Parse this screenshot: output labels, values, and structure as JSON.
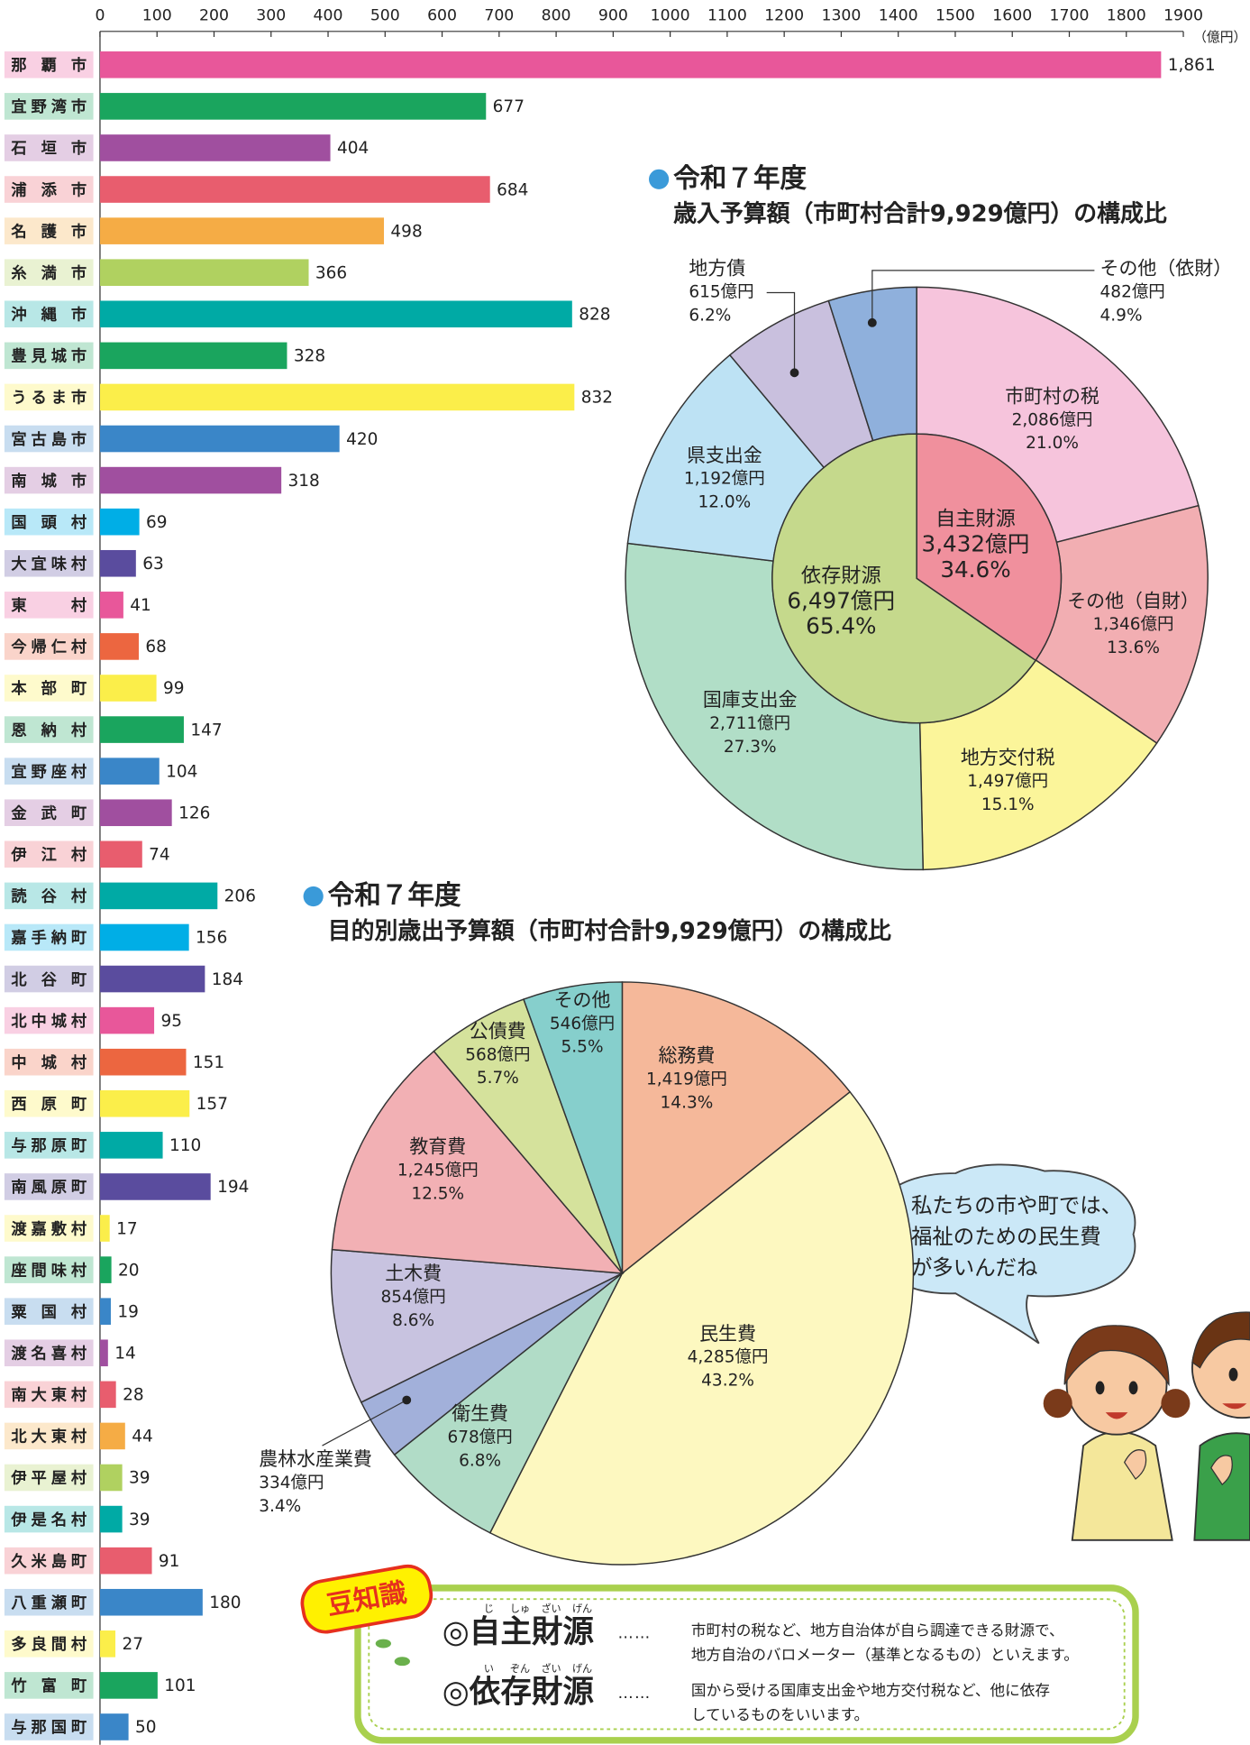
{
  "chart_data": [
    {
      "type": "bar",
      "orientation": "horizontal",
      "categories": [
        "那覇市",
        "宜野湾市",
        "石垣市",
        "浦添市",
        "名護市",
        "糸満市",
        "沖縄市",
        "豊見城市",
        "うるま市",
        "宮古島市",
        "南城市",
        "国頭村",
        "大宜味村",
        "東村",
        "今帰仁村",
        "本部町",
        "恩納村",
        "宜野座村",
        "金武町",
        "伊江村",
        "読谷村",
        "嘉手納町",
        "北谷町",
        "北中城村",
        "中城村",
        "西原町",
        "与那原町",
        "南風原町",
        "渡嘉敷村",
        "座間味村",
        "粟国村",
        "渡名喜村",
        "南大東村",
        "北大東村",
        "伊平屋村",
        "伊是名村",
        "久米島町",
        "八重瀬町",
        "多良間村",
        "竹富町",
        "与那国町"
      ],
      "values": [
        1861,
        677,
        404,
        684,
        498,
        366,
        828,
        328,
        832,
        420,
        318,
        69,
        63,
        41,
        68,
        99,
        147,
        104,
        126,
        74,
        206,
        156,
        184,
        95,
        151,
        157,
        110,
        194,
        17,
        20,
        19,
        14,
        28,
        44,
        39,
        39,
        91,
        180,
        27,
        101,
        50
      ],
      "value_labels": [
        "1,861",
        "677",
        "404",
        "684",
        "498",
        "366",
        "828",
        "328",
        "832",
        "420",
        "318",
        "69",
        "63",
        "41",
        "68",
        "99",
        "147",
        "104",
        "126",
        "74",
        "206",
        "156",
        "184",
        "95",
        "151",
        "157",
        "110",
        "194",
        "17",
        "20",
        "19",
        "14",
        "28",
        "44",
        "39",
        "39",
        "91",
        "180",
        "27",
        "101",
        "50"
      ],
      "colors": [
        "#e8579a",
        "#1aa55e",
        "#a04f9f",
        "#e85d6e",
        "#f5ac45",
        "#b0d160",
        "#00aaa5",
        "#1aa55e",
        "#fbee4a",
        "#3a86c8",
        "#a04f9f",
        "#00aee6",
        "#5a4c9e",
        "#e8579a",
        "#ec6640",
        "#fbee4a",
        "#1aa55e",
        "#3a86c8",
        "#a04f9f",
        "#e85d6e",
        "#00aaa5",
        "#00aee6",
        "#5a4c9e",
        "#e8579a",
        "#ec6640",
        "#fbee4a",
        "#00aaa5",
        "#5a4c9e",
        "#fbee4a",
        "#1aa55e",
        "#3a86c8",
        "#a04f9f",
        "#e85d6e",
        "#f5ac45",
        "#b0d160",
        "#00aaa5",
        "#e85d6e",
        "#3a86c8",
        "#fbee4a",
        "#1aa55e",
        "#3a86c8"
      ],
      "xlim": [
        0,
        1900
      ],
      "xticks": [
        0,
        100,
        200,
        300,
        400,
        500,
        600,
        700,
        800,
        900,
        1000,
        1100,
        1200,
        1300,
        1400,
        1500,
        1600,
        1700,
        1800,
        1900
      ],
      "x_label": "（億円）"
    },
    {
      "type": "donut",
      "title": "令和７年度",
      "subtitle": "歳入予算額（市町村合計9,929億円）の構成比",
      "categories": [
        "市町村の税",
        "その他（自財）",
        "地方交付税",
        "国庫支出金",
        "県支出金",
        "地方債",
        "その他（依財）"
      ],
      "values": [
        21.0,
        13.6,
        15.1,
        27.3,
        12.0,
        6.2,
        4.9
      ],
      "value_labels": [
        "21.0%",
        "13.6%",
        "15.1%",
        "27.3%",
        "12.0%",
        "6.2%",
        "4.9%"
      ],
      "amounts": [
        2086,
        1346,
        1497,
        2711,
        1192,
        615,
        482
      ],
      "amount_labels": [
        "2,086億円",
        "1,346億円",
        "1,497億円",
        "2,711億円",
        "1,192億円",
        "615億円",
        "482億円"
      ],
      "colors": [
        "#f6c4dc",
        "#f2aeb2",
        "#fbf59a",
        "#b1dec7",
        "#bde2f4",
        "#c9c0de",
        "#8fb0dc"
      ],
      "inner": {
        "categories": [
          "自主財源",
          "依存財源"
        ],
        "values": [
          34.6,
          65.4
        ],
        "value_labels": [
          "34.6%",
          "65.4%"
        ],
        "amounts": [
          3432,
          6497
        ],
        "amount_labels": [
          "3,432億円",
          "6,497億円"
        ],
        "colors": [
          "#f0909d",
          "#c5d98c"
        ]
      }
    },
    {
      "type": "pie",
      "title": "令和７年度",
      "subtitle": "目的別歳出予算額（市町村合計9,929億円）の構成比",
      "categories": [
        "総務費",
        "民生費",
        "衛生費",
        "農林水産業費",
        "土木費",
        "教育費",
        "公債費",
        "その他"
      ],
      "values": [
        14.3,
        43.2,
        6.8,
        3.4,
        8.6,
        12.5,
        5.7,
        5.5
      ],
      "value_labels": [
        "14.3%",
        "43.2%",
        "6.8%",
        "3.4%",
        "8.6%",
        "12.5%",
        "5.7%",
        "5.5%"
      ],
      "amounts": [
        1419,
        4285,
        678,
        334,
        854,
        1245,
        568,
        546
      ],
      "amount_labels": [
        "1,419億円",
        "4,285億円",
        "678億円",
        "334億円",
        "854億円",
        "1,245億円",
        "568億円",
        "546億円"
      ],
      "colors": [
        "#f5b89a",
        "#fdf8c0",
        "#b1dcc7",
        "#a2b0da",
        "#c8c3e0",
        "#f2b0b4",
        "#d5e29c",
        "#86cfcc"
      ]
    }
  ],
  "speech_bubble": {
    "lines": [
      "私たちの市や町では、",
      "福祉のための民生費",
      "が多いんだね"
    ]
  },
  "glossary": {
    "badge": "豆知識",
    "items": [
      {
        "term": "◎自主財源",
        "ruby": [
          "じ",
          "しゅ",
          "ざい",
          "げん"
        ],
        "leader": "……",
        "description": [
          "市町村の税など、地方自治体が自ら調達できる財源で、",
          "地方自治のバロメーター（基準となるもの）といえます。"
        ]
      },
      {
        "term": "◎依存財源",
        "ruby": [
          "い",
          "ぞん",
          "ざい",
          "げん"
        ],
        "leader": "……",
        "description": [
          "国から受ける国庫支出金や地方交付税など、他に依存",
          "しているものをいいます。"
        ]
      }
    ]
  }
}
